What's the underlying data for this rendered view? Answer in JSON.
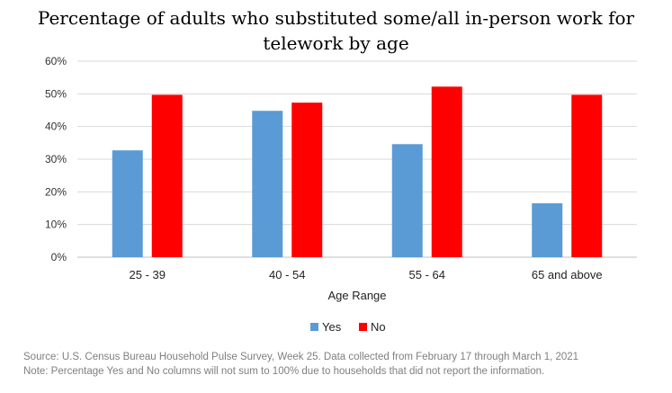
{
  "chart_data": {
    "type": "bar",
    "title": "Percentage of adults who substituted some/all in-person work for telework by age",
    "xlabel": "Age Range",
    "ylabel": "",
    "categories": [
      "25 - 39",
      "40 - 54",
      "55 - 64",
      "65 and above"
    ],
    "series": [
      {
        "name": "Yes",
        "color": "#5b9bd5",
        "values": [
          32.7,
          44.8,
          34.6,
          16.5
        ]
      },
      {
        "name": "No",
        "color": "#ff0000",
        "values": [
          49.7,
          47.3,
          52.2,
          49.7
        ]
      }
    ],
    "ylim": [
      0,
      60
    ],
    "yticks": [
      "0%",
      "10%",
      "20%",
      "30%",
      "40%",
      "50%",
      "60%"
    ],
    "grid": true,
    "legend": "bottom-center"
  },
  "source": "Source: U.S. Census Bureau Household Pulse Survey, Week 25. Data collected from February 17 through March 1, 2021",
  "note": "Note: Percentage Yes and No columns will not sum to 100% due to households that did not report the information."
}
